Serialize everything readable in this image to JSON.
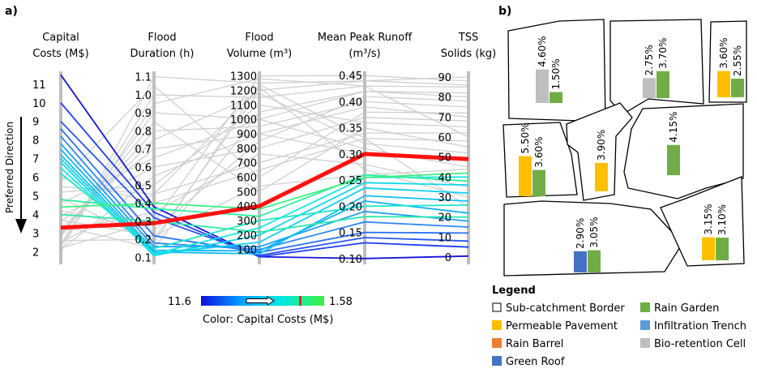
{
  "chart_data": [
    {
      "type": "parallel-coordinates",
      "panel_label": "a)",
      "axes": [
        {
          "key": "capital_costs",
          "title": [
            "Capital",
            "Costs (M$)"
          ],
          "ticks": [
            2,
            3,
            4,
            5,
            6,
            7,
            8,
            9,
            10,
            11
          ],
          "range": [
            1.5,
            11.6
          ]
        },
        {
          "key": "flood_duration",
          "title": [
            "Flood",
            "Duration (h)"
          ],
          "ticks": [
            0.1,
            0.2,
            0.3,
            0.4,
            0.5,
            0.6,
            0.7,
            0.8,
            0.9,
            1.0,
            1.1
          ],
          "tick_labels": [
            "0.1",
            "0.2",
            "0.3",
            "0.4",
            "0.5",
            "0.6",
            "0.7",
            "0.8",
            "0.9",
            "1.0",
            "1.1"
          ],
          "range": [
            0.08,
            1.12
          ]
        },
        {
          "key": "flood_volume",
          "title": [
            "Flood",
            "Volume (m³)"
          ],
          "ticks": [
            100,
            200,
            300,
            400,
            500,
            600,
            700,
            800,
            900,
            1000,
            1100,
            1200,
            1300
          ],
          "range": [
            20,
            1320
          ]
        },
        {
          "key": "mean_peak_runoff",
          "title": [
            "Mean Peak Runoff",
            "(m³/s)"
          ],
          "ticks": [
            0.1,
            0.15,
            0.2,
            0.25,
            0.3,
            0.35,
            0.4,
            0.45
          ],
          "tick_labels": [
            "0.10",
            "0.15",
            "0.20",
            "0.25",
            "0.30",
            "0.35",
            "0.40",
            "0.45"
          ],
          "range": [
            0.095,
            0.455
          ]
        },
        {
          "key": "tss",
          "title": [
            "TSS",
            "Solids (kg)"
          ],
          "ticks": [
            0,
            10,
            20,
            30,
            40,
            50,
            60,
            70,
            80,
            90
          ],
          "range": [
            -2,
            92
          ]
        }
      ],
      "preferred_direction_label": "Preferred Direction",
      "colorbar": {
        "min_label": "11.6",
        "max_label": "1.58",
        "title": "Color: Capital Costs (M$)",
        "colors": [
          "#1010e0",
          "#00a0ff",
          "#00e8e0",
          "#40f040"
        ],
        "marker_color": "#ff2020"
      },
      "highlighted_solution": {
        "color": "#ff1010",
        "values": [
          3.3,
          0.29,
          400,
          0.3,
          49
        ]
      },
      "colored_solutions": [
        {
          "color": "#1515d8",
          "values": [
            11.5,
            0.38,
            50,
            0.1,
            0.5
          ]
        },
        {
          "color": "#1e3cf0",
          "values": [
            10.0,
            0.35,
            50,
            0.13,
            5
          ]
        },
        {
          "color": "#2a55f0",
          "values": [
            9.0,
            0.32,
            60,
            0.14,
            8
          ]
        },
        {
          "color": "#2a70f5",
          "values": [
            8.6,
            0.22,
            80,
            0.15,
            12
          ]
        },
        {
          "color": "#3088f5",
          "values": [
            8.2,
            0.18,
            100,
            0.17,
            15
          ]
        },
        {
          "color": "#1aa0f8",
          "values": [
            7.8,
            0.16,
            120,
            0.19,
            18
          ]
        },
        {
          "color": "#10b0f8",
          "values": [
            7.5,
            0.14,
            90,
            0.21,
            22
          ]
        },
        {
          "color": "#10c0f0",
          "values": [
            7.2,
            0.13,
            70,
            0.22,
            28
          ]
        },
        {
          "color": "#10d0f0",
          "values": [
            7.0,
            0.12,
            150,
            0.235,
            32
          ]
        },
        {
          "color": "#10d8e8",
          "values": [
            6.8,
            0.11,
            200,
            0.245,
            36
          ]
        },
        {
          "color": "#18e8e0",
          "values": [
            6.5,
            0.12,
            250,
            0.255,
            40
          ]
        },
        {
          "color": "#20e8c8",
          "values": [
            6.2,
            0.15,
            300,
            0.2,
            26
          ]
        },
        {
          "color": "#30f0a0",
          "values": [
            4.8,
            0.37,
            330,
            0.26,
            38
          ]
        },
        {
          "color": "#40f080",
          "values": [
            4.4,
            0.4,
            380,
            0.255,
            42
          ]
        },
        {
          "color": "#30e8b0",
          "values": [
            4.0,
            0.3,
            220,
            0.18,
            20
          ]
        }
      ],
      "background_solutions": [
        [
          2.0,
          1.1,
          1250,
          0.44,
          90
        ],
        [
          2.4,
          1.0,
          1150,
          0.43,
          85
        ],
        [
          2.8,
          0.9,
          1000,
          0.42,
          80
        ],
        [
          3.0,
          0.8,
          950,
          0.4,
          75
        ],
        [
          3.6,
          0.7,
          900,
          0.39,
          70
        ],
        [
          3.9,
          0.6,
          800,
          0.37,
          68
        ],
        [
          5.2,
          0.5,
          1100,
          0.36,
          65
        ],
        [
          5.5,
          0.45,
          700,
          0.34,
          62
        ],
        [
          6.0,
          0.4,
          650,
          0.33,
          58
        ],
        [
          2.2,
          0.3,
          1300,
          0.45,
          88
        ],
        [
          2.6,
          0.2,
          1200,
          0.44,
          86
        ],
        [
          3.4,
          0.15,
          1050,
          0.42,
          82
        ],
        [
          4.2,
          0.25,
          850,
          0.41,
          78
        ],
        [
          5.8,
          1.05,
          600,
          0.38,
          72
        ],
        [
          2.3,
          0.95,
          1280,
          0.43,
          60
        ],
        [
          2.9,
          0.85,
          500,
          0.35,
          55
        ],
        [
          3.2,
          0.75,
          1180,
          0.32,
          52
        ],
        [
          4.6,
          0.65,
          1000,
          0.31,
          45
        ],
        [
          2.1,
          0.55,
          900,
          0.3,
          48
        ],
        [
          3.1,
          0.35,
          760,
          0.28,
          35
        ],
        [
          2.5,
          0.45,
          1220,
          0.27,
          30
        ],
        [
          4.9,
          0.18,
          1240,
          0.33,
          25
        ],
        [
          3.7,
          0.22,
          540,
          0.26,
          44
        ]
      ]
    }
  ],
  "panel_b": {
    "panel_label": "b)",
    "colors": {
      "permeable_pavement": "#ffbf00",
      "rain_garden": "#70ad47",
      "green_roof": "#4472c4",
      "bio_retention": "#bfbfbf",
      "infiltration_trench": "#5b9bd5",
      "rain_barrel": "#ed7d31"
    },
    "subcatchments": [
      {
        "name": "sc-top-left",
        "bars": [
          {
            "type": "bio_retention",
            "label": "4.60%",
            "value": 4.6
          },
          {
            "type": "rain_garden",
            "label": "1.50%",
            "value": 1.5
          }
        ]
      },
      {
        "name": "sc-top-mid",
        "bars": [
          {
            "type": "bio_retention",
            "label": "2.75%",
            "value": 2.75
          },
          {
            "type": "rain_garden",
            "label": "3.70%",
            "value": 3.7
          }
        ]
      },
      {
        "name": "sc-top-right",
        "bars": [
          {
            "type": "permeable_pavement",
            "label": "3.60%",
            "value": 3.6
          },
          {
            "type": "rain_garden",
            "label": "2.55%",
            "value": 2.55
          }
        ]
      },
      {
        "name": "sc-mid-left",
        "bars": [
          {
            "type": "permeable_pavement",
            "label": "5.50%",
            "value": 5.5
          },
          {
            "type": "rain_garden",
            "label": "3.60%",
            "value": 3.6
          }
        ]
      },
      {
        "name": "sc-mid-center",
        "bars": [
          {
            "type": "permeable_pavement",
            "label": "3.90%",
            "value": 3.9
          }
        ]
      },
      {
        "name": "sc-mid-right",
        "bars": [
          {
            "type": "rain_garden",
            "label": "4.15%",
            "value": 4.15
          }
        ]
      },
      {
        "name": "sc-bottom-left",
        "bars": [
          {
            "type": "green_roof",
            "label": "2.90%",
            "value": 2.9
          },
          {
            "type": "rain_garden",
            "label": "3.05%",
            "value": 3.05
          }
        ]
      },
      {
        "name": "sc-bottom-right",
        "bars": [
          {
            "type": "permeable_pavement",
            "label": "3.15%",
            "value": 3.15
          },
          {
            "type": "rain_garden",
            "label": "3.10%",
            "value": 3.1
          }
        ]
      }
    ],
    "legend": {
      "title": "Legend",
      "items": [
        {
          "label": "Sub-catchment Border",
          "type": "border"
        },
        {
          "label": "Rain Garden",
          "type": "rain_garden"
        },
        {
          "label": "Permeable Pavement",
          "type": "permeable_pavement"
        },
        {
          "label": "Infiltration Trench",
          "type": "infiltration_trench"
        },
        {
          "label": "Rain Barrel",
          "type": "rain_barrel"
        },
        {
          "label": "Bio-retention Cell",
          "type": "bio_retention"
        },
        {
          "label": "Green Roof",
          "type": "green_roof"
        }
      ]
    }
  }
}
